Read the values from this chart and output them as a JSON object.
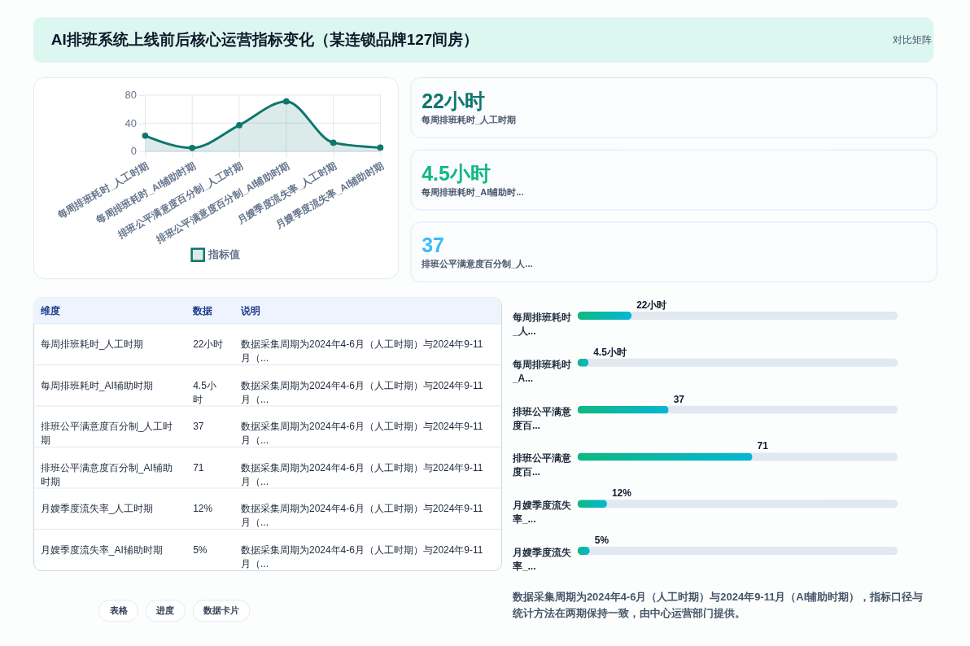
{
  "chart_data": [
    {
      "type": "other",
      "title": "AI排班系统上线前后核心运营指标变化（某连锁品牌127间房）",
      "annotations": [
        "对比矩阵"
      ]
    },
    {
      "type": "area",
      "categories": [
        "每周排班耗时_人工时期",
        "每周排班耗时_AI辅助时期",
        "排班公平满意度百分制_人工时期",
        "排班公平满意度百分制_AI辅助时期",
        "月嫂季度流失率_人工时期",
        "月嫂季度流失率_AI辅助时期"
      ],
      "series": [
        {
          "name": "指标值",
          "color": "#0f766e",
          "values": [
            22,
            4.5,
            37,
            71,
            12,
            5
          ]
        }
      ],
      "ylim": [
        0,
        80
      ],
      "yticks": [
        0,
        40,
        80
      ],
      "grid": true,
      "legend": "bottom",
      "marker": "circle"
    },
    {
      "type": "other",
      "categories": [
        "每周排班耗时_人工时期",
        "每周排班耗时_AI辅助时...",
        "排班公平满意度百分制_人..."
      ],
      "value_labels": [
        "22小时",
        "4.5小时",
        "37"
      ]
    },
    {
      "type": "other",
      "categories": [
        "每周排班耗时_人工时期",
        "每周排班耗时_AI辅助时期",
        "排班公平满意度百分制_人工时期",
        "排班公平满意度百分制_AI辅助时期",
        "月嫂季度流失率_人工时期",
        "月嫂季度流失率_AI辅助时期"
      ],
      "value_labels": [
        "22小时",
        "4.5小时",
        "37",
        "71",
        "12%",
        "5%"
      ],
      "annotations": [
        "维度",
        "数据",
        "说明",
        "数据采集周期为2024年4-6月（人工时期）与2024年9-11月（...",
        "数据采集周期为2024年4-6月（人工时期）与2024年9-11月（...",
        "数据采集周期为2024年4-6月（人工时期）与2024年9-11月（...",
        "数据采集周期为2024年4-6月（人工时期）与2024年9-11月（...",
        "数据采集周期为2024年4-6月（人工时期）与2024年9-11月（...",
        "数据采集周期为2024年4-6月（人工时期）与2024年9-11月（..."
      ]
    },
    {
      "type": "bar",
      "orientation": "horizontal",
      "categories": [
        "每周排班耗时_人...",
        "每周排班耗时_A...",
        "排班公平满意度百...",
        "排班公平满意度百...",
        "月嫂季度流失率_...",
        "月嫂季度流失率_..."
      ],
      "values": [
        22,
        4.5,
        37,
        71,
        12,
        5
      ],
      "value_labels": [
        "22小时",
        "4.5小时",
        "37",
        "71",
        "12%",
        "5%"
      ],
      "color": "#10b981",
      "xlim": [
        0,
        130
      ],
      "tick_labels": "y",
      "annotations": [
        "数据采集周期为2024年4-6月（人工时期）与2024年9-11月（AI辅助时期），指标口径与统计方法在两期保持一致，由中心运营部门提供。"
      ]
    },
    {
      "type": "other",
      "annotations": [
        "表格",
        "进度",
        "数据卡片"
      ]
    }
  ]
}
